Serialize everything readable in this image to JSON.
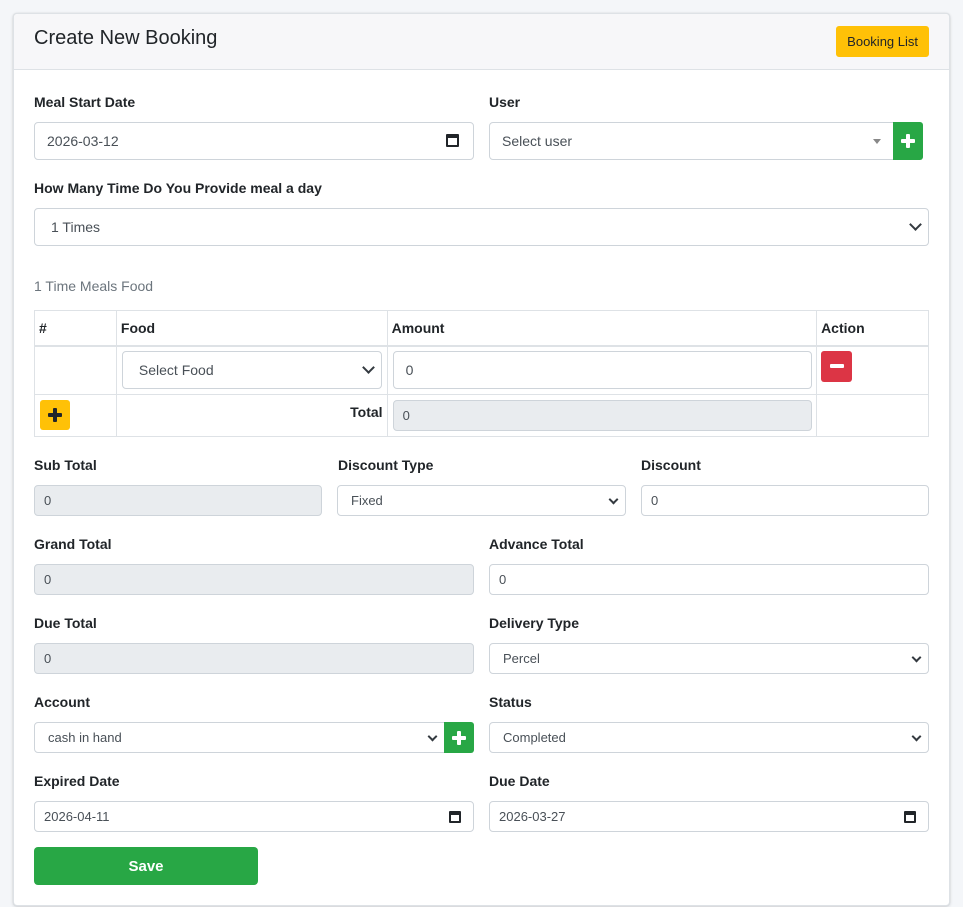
{
  "header": {
    "title": "Create New Booking",
    "booking_list_button": "Booking List"
  },
  "form": {
    "meal_start_date": {
      "label": "Meal Start Date",
      "value": "2026-03-12"
    },
    "user": {
      "label": "User",
      "placeholder": "Select user"
    },
    "meals_per_day": {
      "label": "How Many Time Do You Provide meal a day",
      "value": "1 Times"
    },
    "meals_section_title": "1 Time Meals Food",
    "food_table": {
      "columns": [
        "#",
        "Food",
        "Amount",
        "Action"
      ],
      "rows": [
        {
          "food": "Select Food",
          "amount": "0"
        }
      ],
      "total_label": "Total",
      "total_value": "0"
    },
    "sub_total": {
      "label": "Sub Total",
      "value": "0"
    },
    "discount_type": {
      "label": "Discount Type",
      "value": "Fixed"
    },
    "discount": {
      "label": "Discount",
      "value": "0"
    },
    "grand_total": {
      "label": "Grand Total",
      "value": "0"
    },
    "advance_total": {
      "label": "Advance Total",
      "value": "0"
    },
    "due_total": {
      "label": "Due Total",
      "value": "0"
    },
    "delivery_type": {
      "label": "Delivery Type",
      "value": "Percel"
    },
    "account": {
      "label": "Account",
      "value": "cash in hand"
    },
    "status": {
      "label": "Status",
      "value": "Completed"
    },
    "expired_date": {
      "label": "Expired Date",
      "value": "2026-04-11"
    },
    "due_date": {
      "label": "Due Date",
      "value": "2026-03-27"
    },
    "save_button": "Save"
  },
  "colors": {
    "primary_green": "#28a745",
    "warning": "#ffc107",
    "danger": "#dc3545"
  },
  "icons": {
    "add": "plus-icon",
    "remove": "minus-icon",
    "calendar": "calendar-icon",
    "dropdown": "chevron-down-icon"
  }
}
